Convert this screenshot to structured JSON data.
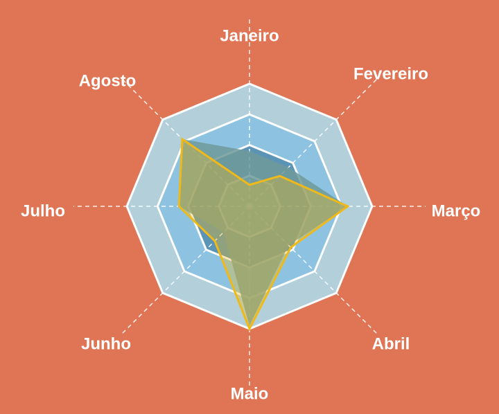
{
  "chart_data": {
    "type": "radar",
    "categories": [
      "Janeiro",
      "Fevereiro",
      "Março",
      "Abril",
      "Maio",
      "Junho",
      "Julho",
      "Agosto"
    ],
    "bands": [
      {
        "value": 4,
        "color": "#B3CFDA"
      },
      {
        "value": 3,
        "color": "#8DC3E1"
      },
      {
        "value": 2,
        "color": "#5C94B5"
      },
      {
        "value": 1,
        "color": "#7AB7BF"
      }
    ],
    "series": [
      {
        "values": [
          1.8,
          1.8,
          3.2,
          1.8,
          3.9,
          1.2,
          2.3,
          3.1
        ],
        "color": "#6E9A9A",
        "fill_opacity": 0.85
      },
      {
        "values": [
          0.7,
          1.4,
          3.2,
          1.9,
          4.0,
          1.6,
          2.3,
          3.1
        ],
        "color": "#F0B91A",
        "fill_opacity": 0.35
      }
    ],
    "rmax": 4,
    "grid": true,
    "legend": "none",
    "background": "#E07555"
  }
}
